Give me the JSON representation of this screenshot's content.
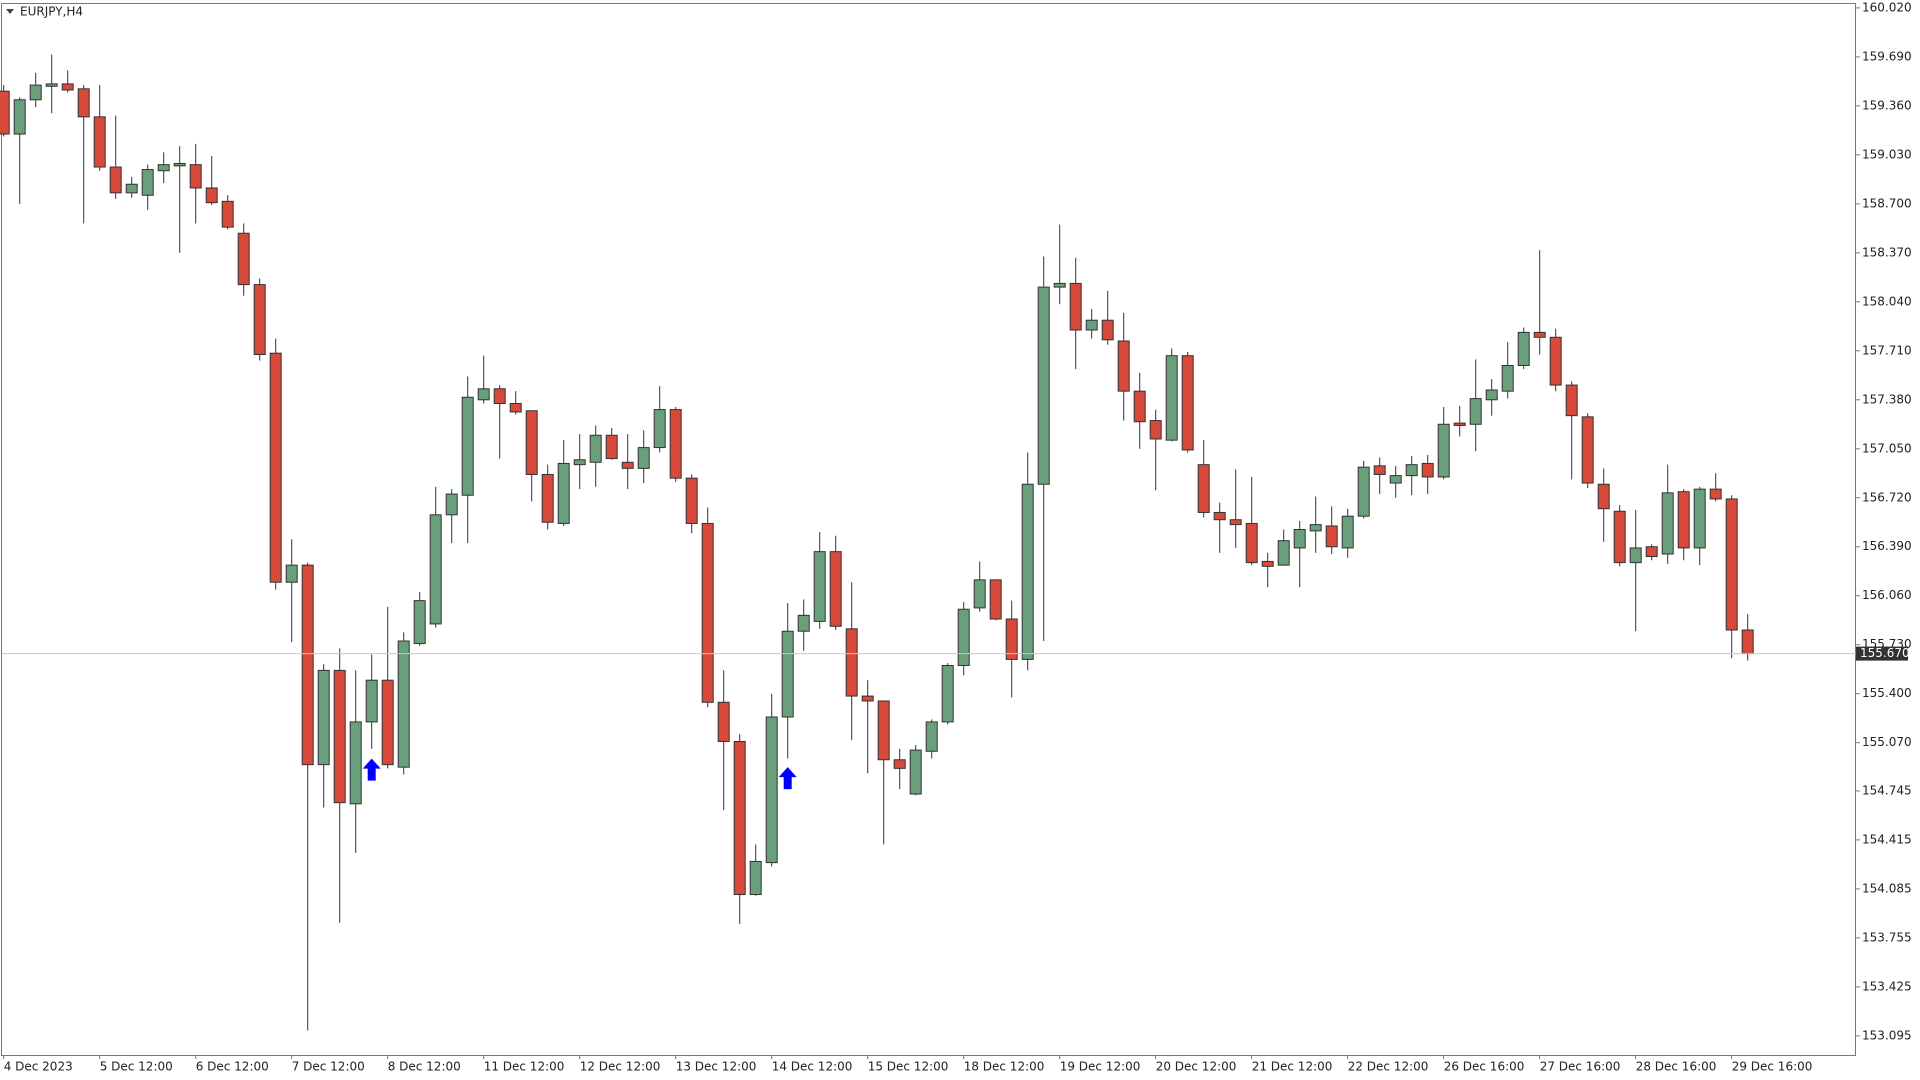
{
  "chart_data": {
    "type": "candlestick",
    "title": "EURJPY,H4",
    "categories": [
      "4 Dec 2023",
      null,
      null,
      null,
      null,
      null,
      "5 Dec 12:00",
      null,
      null,
      null,
      null,
      null,
      "6 Dec 12:00",
      null,
      null,
      null,
      null,
      null,
      "7 Dec 12:00",
      null,
      null,
      null,
      null,
      null,
      "8 Dec 12:00",
      null,
      null,
      null,
      null,
      null,
      "11 Dec 12:00",
      null,
      null,
      null,
      null,
      null,
      "12 Dec 12:00",
      null,
      null,
      null,
      null,
      null,
      "13 Dec 12:00",
      null,
      null,
      null,
      null,
      null,
      "14 Dec 12:00",
      null,
      null,
      null,
      null,
      null,
      "15 Dec 12:00",
      null,
      null,
      null,
      null,
      null,
      "18 Dec 12:00",
      null,
      null,
      null,
      null,
      null,
      "19 Dec 12:00",
      null,
      null,
      null,
      null,
      null,
      "20 Dec 12:00",
      null,
      null,
      null,
      null,
      null,
      "21 Dec 12:00",
      null,
      null,
      null,
      null,
      null,
      "22 Dec 12:00",
      null,
      null,
      null,
      null,
      null,
      "26 Dec 16:00",
      null,
      null,
      null,
      null,
      null,
      "27 Dec 16:00",
      null,
      null,
      null,
      null,
      null,
      "28 Dec 16:00",
      null,
      null,
      null,
      null,
      null,
      "29 Dec 16:00",
      null
    ],
    "open": [
      159.459,
      159.17,
      159.401,
      159.492,
      159.508,
      159.475,
      159.286,
      158.948,
      158.774,
      158.758,
      158.923,
      158.956,
      158.964,
      158.807,
      158.717,
      158.502,
      158.156,
      157.694,
      156.151,
      156.266,
      154.922,
      155.557,
      154.658,
      155.21,
      155.491,
      154.905,
      155.738,
      155.87,
      156.605,
      156.737,
      157.38,
      157.454,
      157.355,
      157.306,
      156.877,
      156.547,
      156.943,
      156.959,
      157.141,
      156.959,
      156.918,
      157.058,
      157.314,
      156.852,
      156.547,
      155.342,
      155.078,
      154.047,
      154.262,
      155.243,
      155.821,
      155.887,
      156.357,
      155.837,
      155.384,
      155.351,
      154.955,
      154.724,
      155.012,
      155.21,
      155.59,
      155.978,
      156.167,
      155.903,
      155.631,
      156.811,
      158.139,
      158.164,
      157.85,
      157.916,
      157.776,
      157.438,
      157.24,
      157.108,
      157.677,
      156.943,
      156.621,
      156.572,
      156.547,
      156.291,
      156.266,
      156.382,
      156.497,
      156.53,
      156.382,
      156.596,
      156.935,
      156.819,
      156.869,
      156.951,
      156.86,
      157.223,
      157.215,
      157.38,
      157.438,
      157.611,
      157.834,
      157.801,
      157.479,
      157.265,
      156.811,
      156.629,
      156.283,
      156.39,
      156.341,
      156.761,
      156.382,
      156.778,
      156.712,
      155.829
    ],
    "high": [
      159.5,
      159.418,
      159.583,
      159.706,
      159.599,
      159.5,
      159.5,
      159.294,
      158.881,
      158.964,
      159.047,
      159.088,
      159.104,
      159.022,
      158.758,
      158.568,
      158.197,
      157.793,
      156.44,
      156.283,
      155.598,
      155.705,
      155.557,
      155.664,
      155.986,
      155.813,
      156.085,
      156.794,
      156.778,
      157.537,
      157.677,
      157.479,
      157.438,
      157.306,
      156.943,
      157.108,
      157.149,
      157.207,
      157.19,
      157.149,
      157.174,
      157.471,
      157.331,
      156.877,
      156.654,
      155.557,
      155.128,
      154.385,
      155.4,
      156.011,
      156.035,
      156.489,
      156.464,
      156.151,
      155.491,
      155.351,
      155.029,
      155.054,
      155.227,
      155.606,
      156.019,
      156.291,
      156.167,
      156.027,
      157.025,
      158.345,
      158.56,
      158.337,
      157.991,
      158.114,
      157.966,
      157.562,
      157.314,
      157.727,
      157.702,
      157.108,
      156.687,
      156.91,
      156.86,
      156.349,
      156.506,
      156.563,
      156.728,
      156.662,
      156.646,
      156.968,
      156.992,
      156.935,
      157.001,
      157.009,
      157.331,
      157.339,
      157.652,
      157.52,
      157.768,
      157.867,
      158.387,
      157.859,
      157.504,
      157.289,
      156.918,
      156.671,
      156.638,
      156.407,
      156.943,
      156.778,
      156.794,
      156.885,
      156.737,
      155.936
    ],
    "low": [
      159.154,
      158.7,
      159.352,
      159.31,
      159.451,
      158.568,
      158.923,
      158.733,
      158.741,
      158.659,
      158.84,
      158.37,
      158.568,
      158.692,
      158.527,
      158.081,
      157.644,
      156.101,
      155.747,
      153.131,
      154.633,
      153.857,
      154.328,
      155.029,
      154.897,
      154.856,
      155.722,
      155.846,
      156.415,
      156.415,
      157.355,
      156.984,
      157.281,
      156.695,
      156.506,
      156.53,
      156.778,
      156.794,
      156.976,
      156.778,
      156.819,
      157.025,
      156.827,
      156.481,
      155.309,
      154.616,
      153.849,
      154.039,
      154.237,
      154.963,
      155.689,
      155.837,
      155.829,
      155.087,
      154.864,
      154.385,
      154.757,
      154.715,
      154.963,
      155.194,
      155.524,
      155.953,
      155.895,
      155.375,
      155.557,
      155.755,
      158.024,
      157.586,
      157.793,
      157.751,
      157.24,
      157.05,
      156.77,
      157.1,
      157.025,
      156.588,
      156.349,
      156.382,
      156.266,
      156.118,
      156.266,
      156.118,
      156.349,
      156.341,
      156.316,
      156.58,
      156.745,
      156.72,
      156.737,
      156.745,
      156.844,
      157.133,
      157.034,
      157.273,
      157.388,
      157.586,
      157.685,
      157.438,
      156.844,
      156.786,
      156.423,
      156.258,
      155.821,
      156.299,
      156.275,
      156.299,
      156.266,
      156.695,
      155.639,
      155.623
    ],
    "close": [
      159.17,
      159.401,
      159.5,
      159.508,
      159.467,
      159.286,
      158.948,
      158.774,
      158.832,
      158.931,
      158.964,
      158.972,
      158.807,
      158.708,
      158.543,
      158.156,
      157.685,
      156.151,
      156.266,
      154.922,
      155.557,
      154.666,
      155.21,
      155.491,
      154.922,
      155.755,
      156.027,
      156.605,
      156.745,
      157.397,
      157.454,
      157.355,
      157.298,
      156.877,
      156.555,
      156.951,
      156.976,
      157.141,
      156.984,
      156.918,
      157.058,
      157.314,
      156.852,
      156.547,
      155.342,
      155.078,
      154.047,
      154.27,
      155.243,
      155.821,
      155.928,
      156.357,
      155.854,
      155.384,
      155.351,
      154.955,
      154.897,
      155.02,
      155.21,
      155.59,
      155.969,
      156.167,
      155.903,
      155.631,
      156.811,
      158.139,
      158.164,
      157.85,
      157.916,
      157.784,
      157.438,
      157.232,
      157.116,
      157.677,
      157.042,
      156.621,
      156.572,
      156.539,
      156.283,
      156.258,
      156.431,
      156.506,
      156.539,
      156.39,
      156.596,
      156.926,
      156.877,
      156.869,
      156.943,
      156.86,
      157.215,
      157.207,
      157.388,
      157.446,
      157.611,
      157.834,
      157.801,
      157.479,
      157.273,
      156.819,
      156.646,
      156.283,
      156.382,
      156.324,
      156.753,
      156.382,
      156.778,
      156.712,
      155.829,
      155.67
    ],
    "up_color": "#6a9f7c",
    "down_color": "#d64a3b",
    "ylim": [
      152.966,
      160.053
    ],
    "yticks": [
      {
        "value": 160.02,
        "label": "160.020"
      },
      {
        "value": 159.69,
        "label": "159.690"
      },
      {
        "value": 159.36,
        "label": "159.360"
      },
      {
        "value": 159.03,
        "label": "159.030"
      },
      {
        "value": 158.7,
        "label": "158.700"
      },
      {
        "value": 158.37,
        "label": "158.370"
      },
      {
        "value": 158.04,
        "label": "158.040"
      },
      {
        "value": 157.71,
        "label": "157.710"
      },
      {
        "value": 157.38,
        "label": "157.380"
      },
      {
        "value": 157.05,
        "label": "157.050"
      },
      {
        "value": 156.72,
        "label": "156.720"
      },
      {
        "value": 156.39,
        "label": "156.390"
      },
      {
        "value": 156.06,
        "label": "156.060"
      },
      {
        "value": 155.73,
        "label": "155.730"
      },
      {
        "value": 155.4,
        "label": "155.400"
      },
      {
        "value": 155.07,
        "label": "155.070"
      },
      {
        "value": 154.745,
        "label": "154.745"
      },
      {
        "value": 154.415,
        "label": "154.415"
      },
      {
        "value": 154.085,
        "label": "154.085"
      },
      {
        "value": 153.755,
        "label": "153.755"
      },
      {
        "value": 153.425,
        "label": "153.425"
      },
      {
        "value": 153.095,
        "label": "153.095"
      }
    ],
    "last_price": {
      "value": 155.67,
      "label": "155.670"
    },
    "arrows": {
      "color": "#0000ff",
      "x": [
        23,
        49
      ],
      "values": [
        154.963,
        154.905
      ]
    }
  }
}
